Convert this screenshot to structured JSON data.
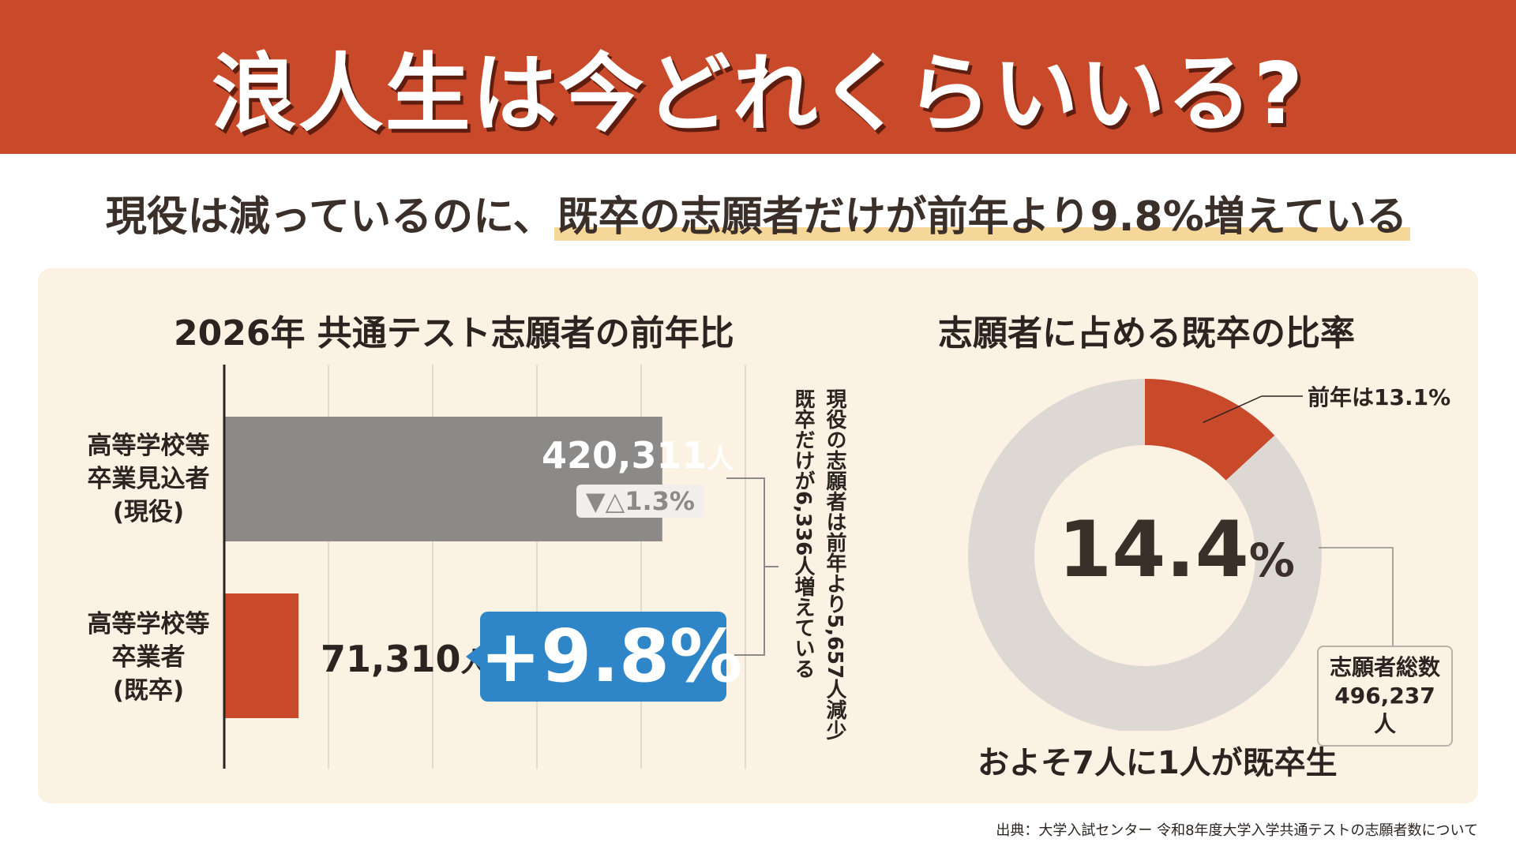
{
  "header": {
    "title": "浪人生は今どれくらいいる?"
  },
  "subtitle": {
    "lead": "現役は減っているのに、",
    "highlight": "既卒の志願者だけが前年より9.8%増えている"
  },
  "chart_data": [
    {
      "type": "bar",
      "orientation": "horizontal",
      "title": "2026年 共通テスト志願者の前年比",
      "categories": [
        "高等学校等卒業見込者(現役)",
        "高等学校等卒業者(既卒)"
      ],
      "values": [
        420311,
        71310
      ],
      "xlim": [
        0,
        500000
      ],
      "grid": true,
      "colors": [
        "#8c8a88",
        "#c84a2b"
      ],
      "labels": {
        "current_value": "420,311",
        "current_change": "▼△1.3%",
        "graduate_value": "71,310",
        "graduate_change": "+9.8%",
        "unit": "人"
      },
      "category_lines": [
        [
          "高等学校等",
          "卒業見込者",
          "(現役)"
        ],
        [
          "高等学校等",
          "卒業者",
          "(既卒)"
        ]
      ],
      "annotation_lines": [
        "現役の志願者は前年より5,657人減少",
        "既卒だけが6,336人増えている"
      ]
    },
    {
      "type": "pie",
      "style": "donut",
      "title": "志願者に占める既卒の比率",
      "slices": [
        {
          "label": "前年は13.1%",
          "value": 13.1,
          "color": "#c84a2b"
        },
        {
          "label": "",
          "value": 86.9,
          "color": "#ddd8d3"
        }
      ],
      "center_value": "14.4",
      "center_unit": "%",
      "total_label": "志願者総数",
      "total_value": "496,237人",
      "note": "およそ7人に1人が既卒生"
    }
  ],
  "source": "出典：大学入試センター 令和8年度大学入学共通テストの志願者数について"
}
